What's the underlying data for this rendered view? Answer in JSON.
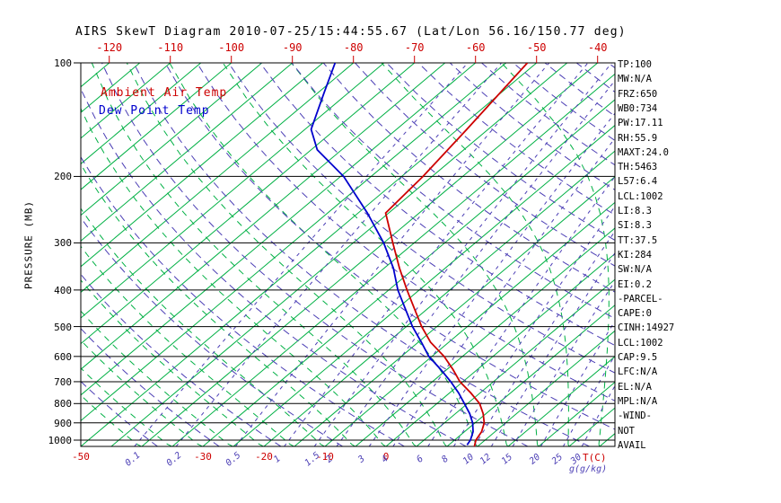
{
  "title": "AIRS SkewT Diagram 2010-07-25/15:44:55.67 (Lat/Lon 56.16/150.77 deg)",
  "legend": {
    "ambient": "Ambient Air Temp",
    "dewpoint": "Dew Point Temp"
  },
  "colors": {
    "ambient": "#cd0000",
    "dewpoint": "#0000cd",
    "isotherm": "#00b044",
    "moist_adiabat": "#00b044",
    "dry_adiabat": "#4c3fb5",
    "mixing_ratio": "#4c3fb5",
    "axis": "#000000"
  },
  "axes": {
    "pressure_label": "PRESSURE (MB)",
    "pressure_ticks": [
      100,
      200,
      300,
      400,
      500,
      600,
      700,
      800,
      900,
      1000
    ],
    "top_temp_ticks": [
      -120,
      -110,
      -100,
      -90,
      -80,
      -70,
      -60,
      -50,
      -40
    ],
    "bottom_temp_ticks": [
      -50,
      -30,
      -20,
      -10,
      0
    ],
    "bottom_temp_unit": "T(C)",
    "mix_ratio_ticks": [
      0.1,
      0.2,
      0.5,
      1,
      1.5,
      2,
      3,
      4,
      6,
      8,
      10,
      12,
      15,
      20,
      25,
      30
    ],
    "mix_ratio_unit": "g(g/kg)"
  },
  "stats": [
    "TP:100",
    "MW:N/A",
    "FRZ:650",
    "WB0:734",
    "PW:17.11",
    "RH:55.9",
    "MAXT:24.0",
    "TH:5463",
    "L57:6.4",
    "LCL:1002",
    "LI:8.3",
    "SI:8.3",
    "TT:37.5",
    "KI:284",
    "SW:N/A",
    "EI:0.2",
    "-PARCEL-",
    "CAPE:0",
    "CINH:14927",
    "LCL:1002",
    "CAP:9.5",
    "LFC:N/A",
    "EL:N/A",
    "MPL:N/A",
    "-WIND-",
    "NOT",
    "AVAIL"
  ],
  "chart_data": {
    "type": "line",
    "title": "AIRS SkewT Diagram",
    "x_axis_label": "T(C)",
    "y_axis_label": "PRESSURE (MB)",
    "y_scale": "log",
    "ylim": [
      100,
      1050
    ],
    "projection": "skew-t-log-p",
    "legend_position": "top-left-inside",
    "series": [
      {
        "name": "Ambient Air Temp",
        "color": "#cd0000",
        "points": [
          [
            100,
            -51.5
          ],
          [
            150,
            -48.5
          ],
          [
            200,
            -46.5
          ],
          [
            250,
            -45.5
          ],
          [
            300,
            -38.5
          ],
          [
            350,
            -32.5
          ],
          [
            400,
            -27
          ],
          [
            450,
            -22
          ],
          [
            500,
            -17.5
          ],
          [
            550,
            -13
          ],
          [
            600,
            -8
          ],
          [
            650,
            -4
          ],
          [
            700,
            -0.5
          ],
          [
            750,
            3.5
          ],
          [
            800,
            7
          ],
          [
            850,
            9.5
          ],
          [
            900,
            11.5
          ],
          [
            950,
            12.8
          ],
          [
            1000,
            13.5
          ],
          [
            1040,
            14.5
          ]
        ]
      },
      {
        "name": "Dew Point Temp",
        "color": "#0000cd",
        "points": [
          [
            100,
            -83
          ],
          [
            120,
            -79
          ],
          [
            150,
            -74
          ],
          [
            170,
            -69
          ],
          [
            200,
            -59.5
          ],
          [
            250,
            -48.5
          ],
          [
            300,
            -40
          ],
          [
            350,
            -33.5
          ],
          [
            400,
            -28.5
          ],
          [
            450,
            -23.5
          ],
          [
            500,
            -19
          ],
          [
            550,
            -14.5
          ],
          [
            600,
            -10.5
          ],
          [
            650,
            -6
          ],
          [
            700,
            -2
          ],
          [
            750,
            1.5
          ],
          [
            800,
            4.5
          ],
          [
            850,
            7.3
          ],
          [
            900,
            9.6
          ],
          [
            950,
            11.4
          ],
          [
            1000,
            12.6
          ],
          [
            1030,
            13
          ]
        ]
      }
    ],
    "background_lines": {
      "isotherms_C": {
        "from": -120,
        "to": 45,
        "step": 5
      },
      "dry_adiabats_C": {
        "from": -40,
        "to": 180,
        "step": 10
      },
      "moist_adiabats_C": {
        "from": -40,
        "to": 40,
        "step": 5
      },
      "mixing_ratio_g_kg": [
        0.1,
        0.2,
        0.5,
        1,
        1.5,
        2,
        3,
        4,
        6,
        8,
        10,
        12,
        15,
        20,
        25,
        30
      ]
    }
  }
}
